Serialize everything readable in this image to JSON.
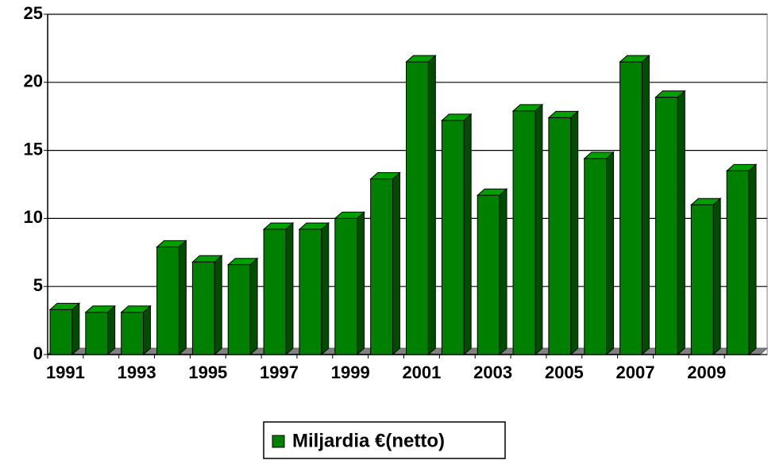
{
  "chart_data": {
    "type": "bar3d",
    "categories": [
      "1991",
      null,
      "1993",
      null,
      "1995",
      null,
      "1997",
      null,
      "1999",
      null,
      "2001",
      null,
      "2003",
      null,
      "2005",
      null,
      "2007",
      null,
      "2009",
      null
    ],
    "series": [
      {
        "name": "Miljardia €(netto)",
        "color": "#008000",
        "values": [
          3.3,
          3.1,
          3.1,
          7.9,
          6.8,
          6.6,
          9.2,
          9.2,
          10.0,
          12.9,
          21.5,
          17.2,
          11.7,
          17.9,
          17.4,
          14.4,
          21.5,
          18.9,
          11.0,
          13.5
        ]
      }
    ],
    "ylim": [
      0,
      25
    ],
    "yticks": [
      0,
      5,
      10,
      15,
      20,
      25
    ],
    "grid": true
  }
}
